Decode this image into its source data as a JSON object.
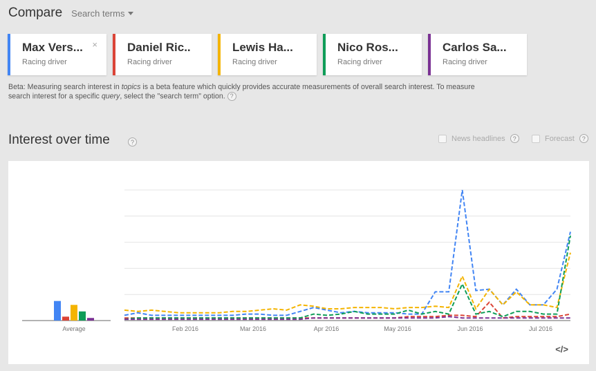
{
  "header": {
    "title": "Compare",
    "search_terms": "Search terms"
  },
  "cards": [
    {
      "name": "Max Vers...",
      "type": "Racing driver",
      "color": "#4285f4",
      "close": "×"
    },
    {
      "name": "Daniel Ric..",
      "type": "Racing driver",
      "color": "#db4437"
    },
    {
      "name": "Lewis Ha...",
      "type": "Racing driver",
      "color": "#f4b400"
    },
    {
      "name": "Nico Ros...",
      "type": "Racing driver",
      "color": "#0f9d58"
    },
    {
      "name": "Carlos Sa...",
      "type": "Racing driver",
      "color": "#7b3294"
    }
  ],
  "beta_note": {
    "text_1": "Beta: Measuring search interest in ",
    "em_1": "topics",
    "text_2": " is a beta feature which quickly provides accurate measurements of overall search interest. To measure search interest for a specific ",
    "em_2": "query",
    "text_3": ", select the \"search term\" option."
  },
  "interest": {
    "title": "Interest over time",
    "news_headlines": "News headlines",
    "forecast": "Forecast",
    "help_icon": "?",
    "embed_label": "</>"
  },
  "chart_data": {
    "type": "line",
    "line_style": "dashed",
    "ylim": [
      0,
      100
    ],
    "grid": true,
    "x_tick_labels": [
      "Feb 2016",
      "Mar 2016",
      "Apr 2016",
      "May 2016",
      "Jun 2016",
      "Jul 2016"
    ],
    "average": {
      "label": "Average",
      "values": [
        15,
        3,
        12,
        7,
        2
      ]
    },
    "series": [
      {
        "color": "#4285f4",
        "values": [
          4,
          6,
          4,
          4,
          4,
          4,
          4,
          4,
          4,
          5,
          5,
          4,
          4,
          7,
          10,
          8,
          6,
          7,
          6,
          6,
          6,
          5,
          5,
          22,
          22,
          100,
          23,
          24,
          12,
          24,
          12,
          12,
          24,
          68
        ]
      },
      {
        "color": "#db4437",
        "values": [
          2,
          2,
          2,
          2,
          2,
          2,
          2,
          2,
          2,
          2,
          2,
          2,
          2,
          2,
          2,
          2,
          2,
          2,
          2,
          2,
          2,
          3,
          3,
          3,
          4,
          4,
          3,
          14,
          2,
          3,
          3,
          3,
          3,
          5
        ]
      },
      {
        "color": "#f4b400",
        "values": [
          8,
          7,
          8,
          7,
          6,
          6,
          6,
          6,
          7,
          7,
          8,
          9,
          8,
          12,
          11,
          9,
          9,
          10,
          10,
          10,
          9,
          10,
          10,
          11,
          10,
          34,
          9,
          24,
          12,
          22,
          12,
          12,
          10,
          52
        ]
      },
      {
        "color": "#0f9d58",
        "values": [
          1,
          2,
          2,
          2,
          2,
          2,
          2,
          2,
          2,
          2,
          2,
          2,
          2,
          2,
          5,
          4,
          5,
          7,
          5,
          5,
          5,
          8,
          5,
          7,
          5,
          28,
          5,
          7,
          3,
          7,
          7,
          5,
          5,
          65
        ]
      },
      {
        "color": "#7b3294",
        "values": [
          1,
          1,
          1,
          1,
          1,
          1,
          1,
          1,
          1,
          1,
          1,
          1,
          1,
          1,
          2,
          2,
          2,
          2,
          2,
          2,
          2,
          2,
          2,
          2,
          3,
          2,
          2,
          2,
          2,
          2,
          2,
          2,
          2,
          2
        ]
      }
    ]
  }
}
